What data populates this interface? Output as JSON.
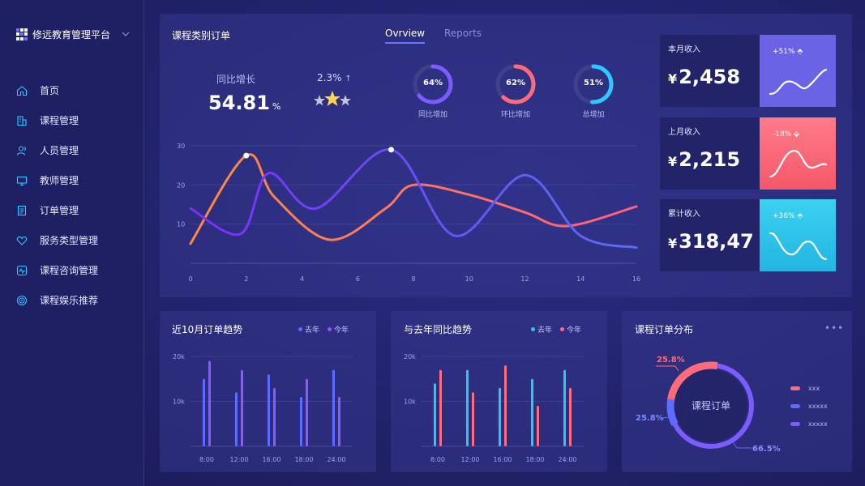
{
  "brand": {
    "name": "修远教育管理平台"
  },
  "nav": [
    {
      "label": "首页",
      "icon": "home-icon"
    },
    {
      "label": "课程管理",
      "icon": "building-icon"
    },
    {
      "label": "人员管理",
      "icon": "users-icon"
    },
    {
      "label": "教师管理",
      "icon": "monitor-icon"
    },
    {
      "label": "订单管理",
      "icon": "document-icon"
    },
    {
      "label": "服务类型管理",
      "icon": "heart-icon"
    },
    {
      "label": "课程咨询管理",
      "icon": "pulse-icon"
    },
    {
      "label": "课程娱乐推荐",
      "icon": "target-icon"
    }
  ],
  "main": {
    "title": "课程类别订单",
    "tabs": [
      {
        "label": "Ovrview",
        "active": true
      },
      {
        "label": "Reports",
        "active": false
      }
    ],
    "growth": {
      "label": "同比增长",
      "value": "54.81",
      "unit": "%"
    },
    "rating": {
      "value": "2.3%",
      "stars": 3
    },
    "rings": [
      {
        "pct": "64%",
        "value": 0.64,
        "label": "同比增加",
        "color": "#7a5cff"
      },
      {
        "pct": "62%",
        "value": 0.62,
        "label": "环比增加",
        "color": "#ff6b7a"
      },
      {
        "pct": "51%",
        "value": 0.51,
        "label": "总增加",
        "color": "#2ec7ff"
      }
    ]
  },
  "chart_data": [
    {
      "type": "line",
      "x": [
        0,
        2,
        4,
        6,
        8,
        10,
        12,
        14,
        16
      ],
      "xticks": [
        "0",
        "2",
        "4",
        "6",
        "8",
        "10",
        "12",
        "14",
        "16"
      ],
      "yticks": [
        "10",
        "20",
        "30"
      ],
      "ylim": [
        0,
        30
      ],
      "series": [
        {
          "color": "#ff7a45",
          "points": [
            [
              0,
              5
            ],
            [
              2,
              27.5
            ],
            [
              3,
              17
            ],
            [
              5,
              6
            ],
            [
              7,
              14
            ],
            [
              8,
              20
            ],
            [
              10,
              17.5
            ],
            [
              12,
              13
            ],
            [
              13.5,
              9.5
            ],
            [
              16,
              14.5
            ]
          ]
        },
        {
          "color": "#8a3cff",
          "points": [
            [
              0,
              14
            ],
            [
              1.8,
              7.5
            ],
            [
              2.8,
              23
            ],
            [
              4.5,
              14
            ],
            [
              7.2,
              29
            ],
            [
              9.5,
              7
            ],
            [
              12,
              22.5
            ],
            [
              14,
              7
            ],
            [
              16,
              4
            ]
          ]
        }
      ]
    },
    {
      "type": "bar",
      "title": "近10月订单趋势",
      "categories": [
        "8:00",
        "12:00",
        "16:00",
        "18:00",
        "24:00"
      ],
      "yticks": [
        "20k",
        "10k"
      ],
      "ylim": [
        0,
        20000
      ],
      "series": [
        {
          "name": "去年",
          "color": "#5b6cff",
          "values": [
            15000,
            12000,
            16000,
            11000,
            17000
          ]
        },
        {
          "name": "今年",
          "color": "#8b59ff",
          "values": [
            19000,
            17000,
            13000,
            15000,
            11000
          ]
        }
      ]
    },
    {
      "type": "bar",
      "title": "与去年同比趋势",
      "categories": [
        "8:00",
        "12:00",
        "16:00",
        "18:00",
        "24:00"
      ],
      "yticks": [
        "20k",
        "10k"
      ],
      "ylim": [
        0,
        20000
      ],
      "series": [
        {
          "name": "去年",
          "color": "#2ec7e6",
          "values": [
            14000,
            17000,
            13000,
            15000,
            17000
          ]
        },
        {
          "name": "今年",
          "color": "#ff6b80",
          "values": [
            17000,
            12000,
            18000,
            9000,
            13000
          ]
        }
      ]
    },
    {
      "type": "pie",
      "title": "课程订单分布",
      "center_label": "课程订单",
      "slices": [
        {
          "label": "xxx",
          "value": 25.8,
          "pct": "25.8%",
          "color": "#ff6b7a"
        },
        {
          "label": "xxxxx",
          "value": 25.8,
          "pct": "25.8%",
          "color": "#5b6cff"
        },
        {
          "label": "xxxxx",
          "value": 66.5,
          "pct": "66.5%",
          "color": "#7a5cff"
        }
      ]
    }
  ],
  "cards": [
    {
      "label": "本月收入",
      "value": "2,458",
      "currency": "¥",
      "pct": "+51%",
      "bg": "#6a63e6"
    },
    {
      "label": "上月收入",
      "value": "2,215",
      "currency": "¥",
      "pct": "-18%",
      "bg": "#ff6b7a"
    },
    {
      "label": "累计收入",
      "value": "318,47",
      "currency": "¥",
      "pct": "+36%",
      "bg": "#2ec0e6"
    }
  ]
}
